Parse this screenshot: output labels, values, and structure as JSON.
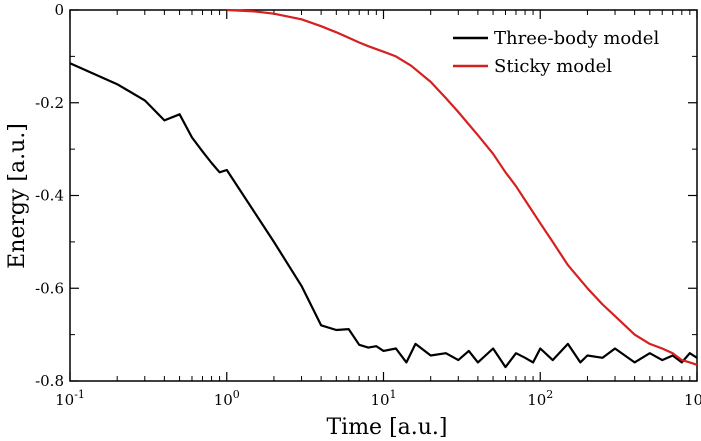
{
  "chart_data": {
    "type": "line",
    "title": "",
    "xlabel": "Time [a.u.]",
    "ylabel": "Energy [a.u.]",
    "xscale": "log",
    "xlim": [
      0.1,
      1000
    ],
    "ylim": [
      -0.8,
      0
    ],
    "grid": false,
    "legend_position": "top-right",
    "x_ticks": [
      {
        "value": 0.1,
        "base": "10",
        "exp": "-1"
      },
      {
        "value": 1,
        "base": "10",
        "exp": "0"
      },
      {
        "value": 10,
        "base": "10",
        "exp": "1"
      },
      {
        "value": 100,
        "base": "10",
        "exp": "2"
      },
      {
        "value": 1000,
        "base": "10",
        "exp": "3"
      }
    ],
    "y_ticks": [
      {
        "value": 0,
        "label": "0"
      },
      {
        "value": -0.2,
        "label": "-0.2"
      },
      {
        "value": -0.4,
        "label": "-0.4"
      },
      {
        "value": -0.6,
        "label": "-0.6"
      },
      {
        "value": -0.8,
        "label": "-0.8"
      }
    ],
    "series": [
      {
        "name": "Three-body model",
        "color": "#000000",
        "x": [
          0.1,
          0.2,
          0.3,
          0.4,
          0.5,
          0.6,
          0.7,
          0.8,
          0.9,
          1,
          2,
          3,
          4,
          5,
          6,
          7,
          8,
          9,
          10,
          12,
          14,
          16,
          20,
          25,
          30,
          35,
          40,
          50,
          60,
          70,
          80,
          90,
          100,
          120,
          150,
          180,
          200,
          250,
          300,
          400,
          500,
          600,
          700,
          800,
          900,
          1000
        ],
        "y": [
          -0.115,
          -0.16,
          -0.195,
          -0.238,
          -0.225,
          -0.275,
          -0.305,
          -0.33,
          -0.35,
          -0.345,
          -0.5,
          -0.595,
          -0.68,
          -0.69,
          -0.688,
          -0.722,
          -0.728,
          -0.725,
          -0.735,
          -0.73,
          -0.76,
          -0.72,
          -0.745,
          -0.74,
          -0.755,
          -0.735,
          -0.76,
          -0.73,
          -0.77,
          -0.74,
          -0.75,
          -0.76,
          -0.73,
          -0.755,
          -0.72,
          -0.76,
          -0.745,
          -0.75,
          -0.73,
          -0.76,
          -0.74,
          -0.755,
          -0.745,
          -0.76,
          -0.74,
          -0.75
        ]
      },
      {
        "name": "Sticky model",
        "color": "#d62020",
        "x": [
          1,
          1.5,
          2,
          3,
          4,
          5,
          6,
          7,
          8,
          10,
          12,
          15,
          20,
          25,
          30,
          40,
          50,
          60,
          70,
          80,
          100,
          120,
          150,
          200,
          250,
          300,
          400,
          500,
          600,
          700,
          800,
          900,
          1000
        ],
        "y": [
          0,
          -0.003,
          -0.008,
          -0.02,
          -0.035,
          -0.048,
          -0.06,
          -0.07,
          -0.078,
          -0.09,
          -0.1,
          -0.12,
          -0.155,
          -0.19,
          -0.22,
          -0.27,
          -0.31,
          -0.35,
          -0.38,
          -0.41,
          -0.46,
          -0.5,
          -0.55,
          -0.6,
          -0.635,
          -0.66,
          -0.7,
          -0.72,
          -0.73,
          -0.74,
          -0.755,
          -0.76,
          -0.765
        ]
      }
    ]
  }
}
